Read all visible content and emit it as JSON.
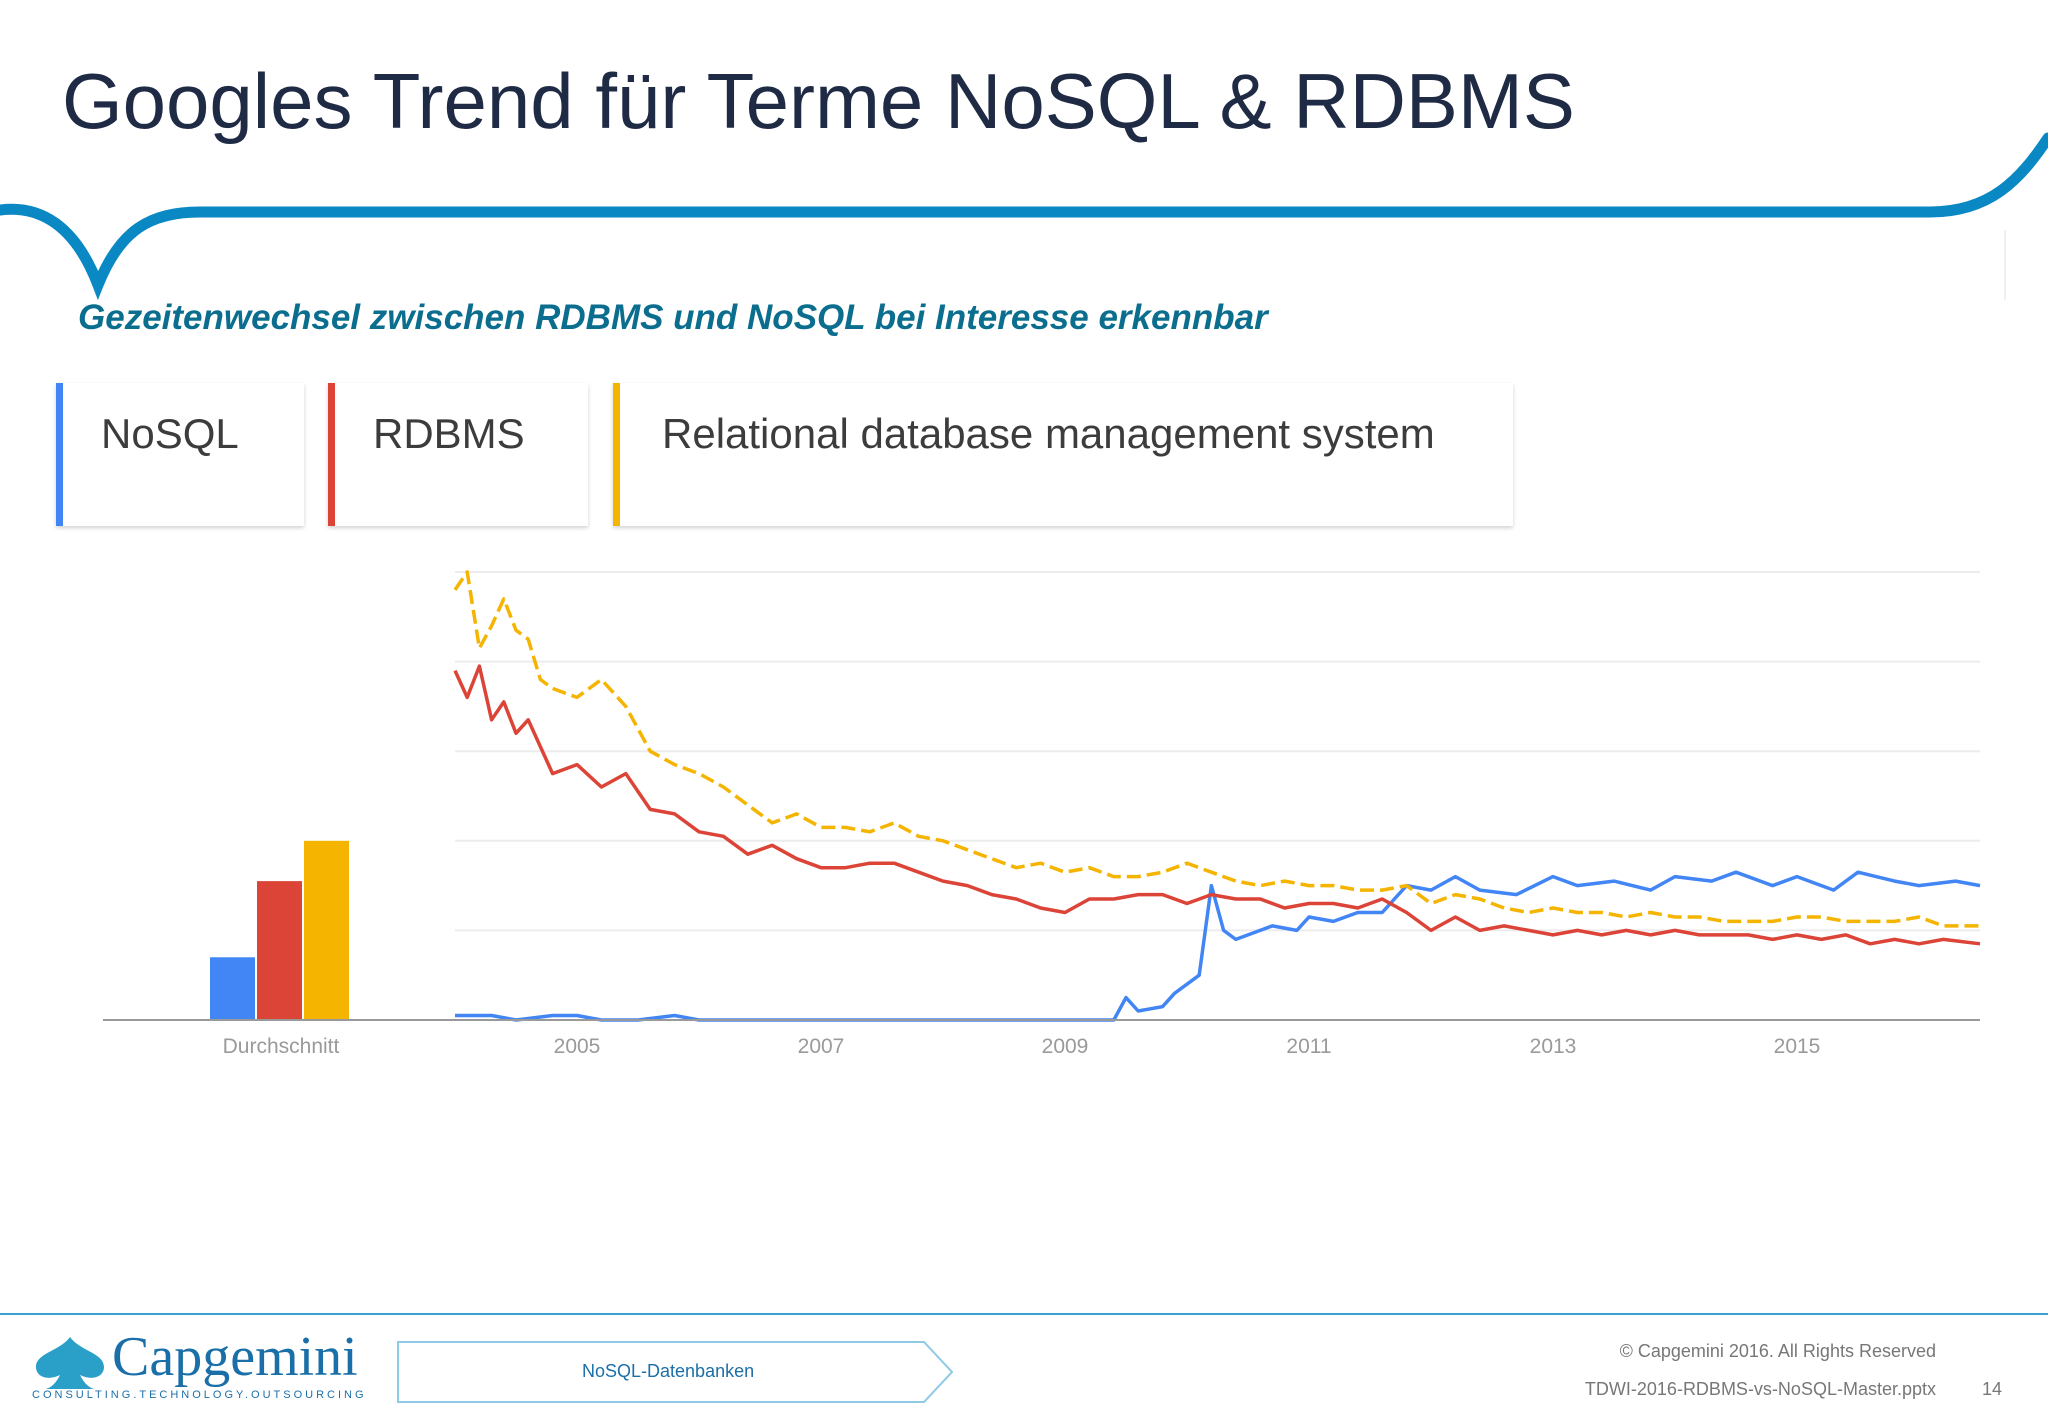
{
  "slide": {
    "title": "Googles Trend für Terme NoSQL & RDBMS",
    "subtitle": "Gezeitenwechsel zwischen RDBMS und NoSQL bei Interesse erkennbar"
  },
  "legend": [
    {
      "label": "NoSQL",
      "color": "#4285f4"
    },
    {
      "label": "RDBMS",
      "color": "#db4437"
    },
    {
      "label": "Relational database management system",
      "color": "#f4b400"
    }
  ],
  "chart_data": {
    "type": "line",
    "x_ticks": [
      "2005",
      "2007",
      "2009",
      "2011",
      "2013",
      "2015"
    ],
    "x_range": [
      2004.0,
      2016.5
    ],
    "ylim": [
      0,
      100
    ],
    "gridlines": 5,
    "average_bars": {
      "label": "Durchschnitt",
      "values": [
        14,
        31,
        40
      ]
    },
    "series": [
      {
        "name": "NoSQL",
        "color": "#4285f4",
        "style": "solid",
        "x": [
          2004.0,
          2004.3,
          2004.5,
          2004.8,
          2005.0,
          2005.2,
          2005.5,
          2005.8,
          2006.0,
          2006.5,
          2007.0,
          2008.0,
          2009.0,
          2009.4,
          2009.5,
          2009.6,
          2009.8,
          2009.9,
          2010.1,
          2010.2,
          2010.3,
          2010.4,
          2010.5,
          2010.7,
          2010.9,
          2011.0,
          2011.2,
          2011.4,
          2011.6,
          2011.8,
          2012.0,
          2012.2,
          2012.4,
          2012.7,
          2013.0,
          2013.2,
          2013.5,
          2013.8,
          2014.0,
          2014.3,
          2014.5,
          2014.8,
          2015.0,
          2015.3,
          2015.5,
          2015.8,
          2016.0,
          2016.3,
          2016.5
        ],
        "y": [
          1,
          1,
          0,
          1,
          1,
          0,
          0,
          1,
          0,
          0,
          0,
          0,
          0,
          0,
          5,
          2,
          3,
          6,
          10,
          30,
          20,
          18,
          19,
          21,
          20,
          23,
          22,
          24,
          24,
          30,
          29,
          32,
          29,
          28,
          32,
          30,
          31,
          29,
          32,
          31,
          33,
          30,
          32,
          29,
          33,
          31,
          30,
          31,
          30
        ]
      },
      {
        "name": "RDBMS",
        "color": "#db4437",
        "style": "solid",
        "x": [
          2004.0,
          2004.1,
          2004.2,
          2004.3,
          2004.4,
          2004.5,
          2004.6,
          2004.8,
          2005.0,
          2005.2,
          2005.4,
          2005.6,
          2005.8,
          2006.0,
          2006.2,
          2006.4,
          2006.6,
          2006.8,
          2007.0,
          2007.2,
          2007.4,
          2007.6,
          2007.8,
          2008.0,
          2008.2,
          2008.4,
          2008.6,
          2008.8,
          2009.0,
          2009.2,
          2009.4,
          2009.6,
          2009.8,
          2010.0,
          2010.2,
          2010.4,
          2010.6,
          2010.8,
          2011.0,
          2011.2,
          2011.4,
          2011.6,
          2011.8,
          2012.0,
          2012.2,
          2012.4,
          2012.6,
          2012.8,
          2013.0,
          2013.2,
          2013.4,
          2013.6,
          2013.8,
          2014.0,
          2014.2,
          2014.4,
          2014.6,
          2014.8,
          2015.0,
          2015.2,
          2015.4,
          2015.6,
          2015.8,
          2016.0,
          2016.2,
          2016.5
        ],
        "y": [
          78,
          72,
          79,
          67,
          71,
          64,
          67,
          55,
          57,
          52,
          55,
          47,
          46,
          42,
          41,
          37,
          39,
          36,
          34,
          34,
          35,
          35,
          33,
          31,
          30,
          28,
          27,
          25,
          24,
          27,
          27,
          28,
          28,
          26,
          28,
          27,
          27,
          25,
          26,
          26,
          25,
          27,
          24,
          20,
          23,
          20,
          21,
          20,
          19,
          20,
          19,
          20,
          19,
          20,
          19,
          19,
          19,
          18,
          19,
          18,
          19,
          17,
          18,
          17,
          18,
          17
        ]
      },
      {
        "name": "Relational database management system",
        "color": "#f4b400",
        "style": "dashed",
        "x": [
          2004.0,
          2004.1,
          2004.2,
          2004.3,
          2004.4,
          2004.5,
          2004.6,
          2004.7,
          2004.8,
          2005.0,
          2005.2,
          2005.4,
          2005.6,
          2005.8,
          2006.0,
          2006.2,
          2006.4,
          2006.6,
          2006.8,
          2007.0,
          2007.2,
          2007.4,
          2007.6,
          2007.8,
          2008.0,
          2008.2,
          2008.4,
          2008.6,
          2008.8,
          2009.0,
          2009.2,
          2009.4,
          2009.6,
          2009.8,
          2010.0,
          2010.2,
          2010.4,
          2010.6,
          2010.8,
          2011.0,
          2011.2,
          2011.4,
          2011.6,
          2011.8,
          2012.0,
          2012.2,
          2012.4,
          2012.6,
          2012.8,
          2013.0,
          2013.2,
          2013.4,
          2013.6,
          2013.8,
          2014.0,
          2014.2,
          2014.4,
          2014.6,
          2014.8,
          2015.0,
          2015.2,
          2015.4,
          2015.6,
          2015.8,
          2016.0,
          2016.2,
          2016.5
        ],
        "y": [
          96,
          100,
          83,
          88,
          94,
          87,
          85,
          76,
          74,
          72,
          76,
          70,
          60,
          57,
          55,
          52,
          48,
          44,
          46,
          43,
          43,
          42,
          44,
          41,
          40,
          38,
          36,
          34,
          35,
          33,
          34,
          32,
          32,
          33,
          35,
          33,
          31,
          30,
          31,
          30,
          30,
          29,
          29,
          30,
          26,
          28,
          27,
          25,
          24,
          25,
          24,
          24,
          23,
          24,
          23,
          23,
          22,
          22,
          22,
          23,
          23,
          22,
          22,
          22,
          23,
          21,
          21
        ]
      }
    ]
  },
  "footer": {
    "logo_text": "Capgemini",
    "logo_tagline": "CONSULTING.TECHNOLOGY.OUTSOURCING",
    "nav_label": "NoSQL-Datenbanken",
    "copyright": "© Capgemini 2016. All Rights Reserved",
    "filename": "TDWI-2016-RDBMS-vs-NoSQL-Master.pptx",
    "page_number": "14"
  }
}
